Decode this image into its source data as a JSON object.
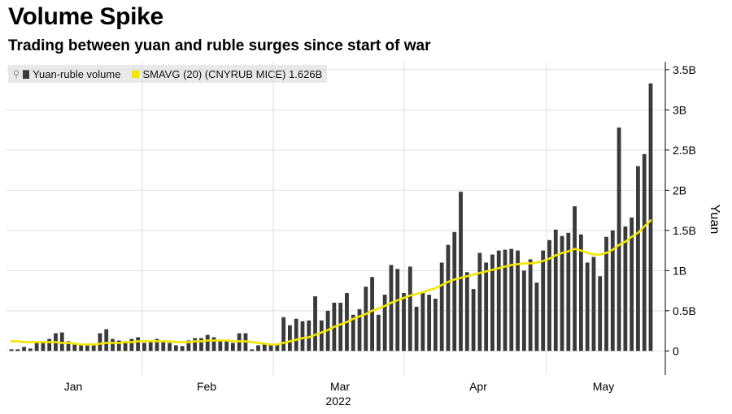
{
  "title": "Volume Spike",
  "subtitle": "Trading between yuan and ruble surges since start of war",
  "chart_data": {
    "type": "bar",
    "ylabel": "Yuan",
    "xlabel": "",
    "year_label": "2022",
    "ylim": [
      -0.3,
      3.6
    ],
    "yticks": [
      0,
      0.5,
      1,
      1.5,
      2,
      2.5,
      3,
      3.5
    ],
    "ytick_labels": [
      "0",
      "0.5B",
      "1B",
      "1.5B",
      "2B",
      "2.5B",
      "3B",
      "3.5B"
    ],
    "month_labels": [
      "Jan",
      "Feb",
      "Mar",
      "Apr",
      "May"
    ],
    "grid": true,
    "legend_position": "top-left",
    "series": [
      {
        "name": "Yuan-ruble volume",
        "type": "bar",
        "color": "#3a3a3a",
        "values": [
          0.02,
          0.02,
          0.05,
          0.03,
          0.1,
          0.12,
          0.15,
          0.22,
          0.23,
          0.12,
          0.1,
          0.08,
          0.08,
          0.09,
          0.22,
          0.27,
          0.15,
          0.13,
          0.12,
          0.15,
          0.17,
          0.1,
          0.13,
          0.15,
          0.12,
          0.1,
          0.07,
          0.06,
          0.13,
          0.16,
          0.16,
          0.2,
          0.17,
          0.12,
          0.13,
          0.1,
          0.22,
          0.22,
          0.02,
          0.07,
          0.08,
          0.09,
          0.08,
          0.42,
          0.32,
          0.4,
          0.37,
          0.38,
          0.68,
          0.38,
          0.5,
          0.6,
          0.6,
          0.72,
          0.45,
          0.52,
          0.8,
          0.92,
          0.45,
          0.7,
          1.07,
          1.02,
          0.72,
          1.05,
          0.55,
          0.72,
          0.7,
          0.65,
          1.1,
          1.32,
          1.48,
          1.98,
          0.98,
          0.77,
          1.22,
          1.1,
          1.2,
          1.25,
          1.26,
          1.27,
          1.25,
          1.0,
          1.14,
          0.85,
          1.25,
          1.38,
          1.51,
          1.43,
          1.47,
          1.8,
          1.45,
          1.1,
          1.17,
          0.93,
          1.42,
          1.5,
          2.78,
          1.55,
          1.66,
          2.3,
          2.45,
          3.33
        ]
      },
      {
        "name": "SMAVG (20) (CNYRUB MICE) 1.626B",
        "type": "line",
        "color": "#f2e600",
        "values": [
          0.12,
          0.12,
          0.11,
          0.11,
          0.11,
          0.11,
          0.11,
          0.11,
          0.1,
          0.1,
          0.09,
          0.08,
          0.08,
          0.08,
          0.09,
          0.1,
          0.1,
          0.1,
          0.11,
          0.11,
          0.12,
          0.12,
          0.12,
          0.12,
          0.12,
          0.12,
          0.11,
          0.11,
          0.11,
          0.12,
          0.12,
          0.13,
          0.13,
          0.13,
          0.13,
          0.12,
          0.12,
          0.12,
          0.11,
          0.1,
          0.09,
          0.08,
          0.08,
          0.1,
          0.12,
          0.14,
          0.16,
          0.17,
          0.2,
          0.23,
          0.26,
          0.3,
          0.33,
          0.36,
          0.4,
          0.43,
          0.46,
          0.5,
          0.53,
          0.56,
          0.6,
          0.63,
          0.66,
          0.69,
          0.71,
          0.73,
          0.76,
          0.78,
          0.82,
          0.86,
          0.89,
          0.91,
          0.93,
          0.95,
          0.97,
          0.99,
          1.01,
          1.03,
          1.05,
          1.07,
          1.08,
          1.09,
          1.09,
          1.1,
          1.12,
          1.15,
          1.19,
          1.22,
          1.24,
          1.27,
          1.25,
          1.22,
          1.2,
          1.2,
          1.22,
          1.26,
          1.32,
          1.36,
          1.42,
          1.47,
          1.55,
          1.626
        ]
      }
    ]
  }
}
